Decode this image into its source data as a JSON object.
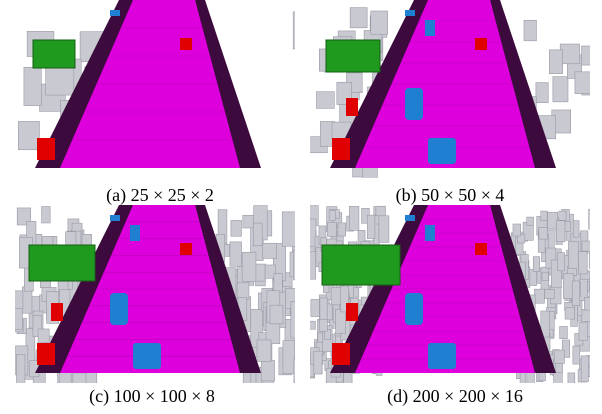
{
  "figure": {
    "panels": [
      {
        "caption": "(a) 25 × 25 × 2"
      },
      {
        "caption": "(b) 50 × 50 × 4"
      },
      {
        "caption": "(c) 100 × 100 × 8"
      },
      {
        "caption": "(d) 200 × 200 × 16"
      }
    ]
  }
}
